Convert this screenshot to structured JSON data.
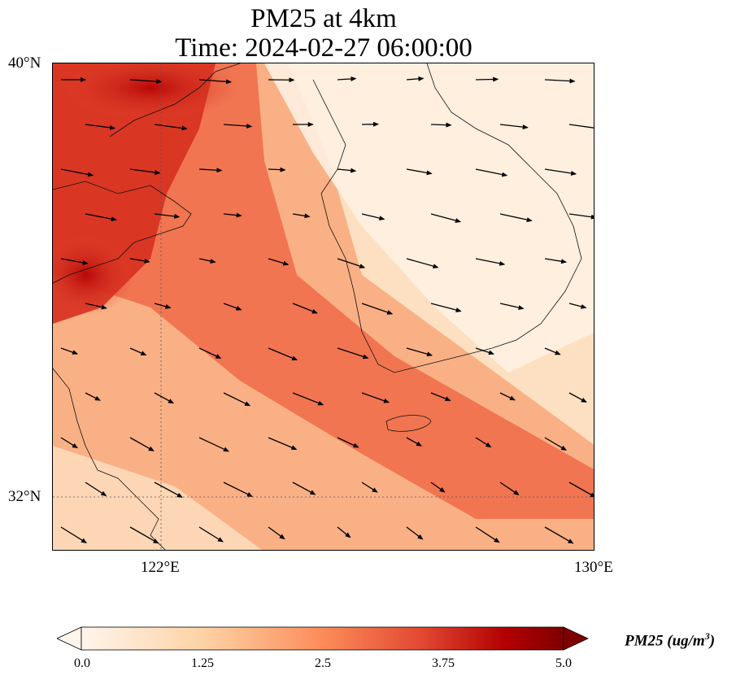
{
  "title_line1": "PM25 at 4km",
  "title_line2": "Time: 2024-02-27 06:00:00",
  "map": {
    "lat_labels": [
      "40°N",
      "32°N"
    ],
    "lon_labels": [
      "122°E",
      "130°E"
    ],
    "extent": {
      "lon_min": 120,
      "lon_max": 130,
      "lat_min": 31,
      "lat_max": 40
    },
    "gridlines": {
      "lon": [
        122
      ],
      "lat": [
        32
      ],
      "style": "dotted"
    },
    "background_field": "PM25 concentration, highest over the Chinese coast and the Yellow Sea, lowest over the Korean Peninsula",
    "vectors": "wind arrows pointing generally east to east-south-east"
  },
  "colorbar": {
    "label_text": "PM25 (ug/m",
    "label_sup": "3",
    "label_close": ")",
    "ticks": [
      "0.0",
      "1.25",
      "2.5",
      "3.75",
      "5.0"
    ],
    "range": [
      0.0,
      5.0
    ],
    "colormap": [
      "#fff5eb",
      "#fdd3a6",
      "#fc8c59",
      "#e34a33",
      "#b30000",
      "#7f0000"
    ],
    "extend": "both"
  }
}
